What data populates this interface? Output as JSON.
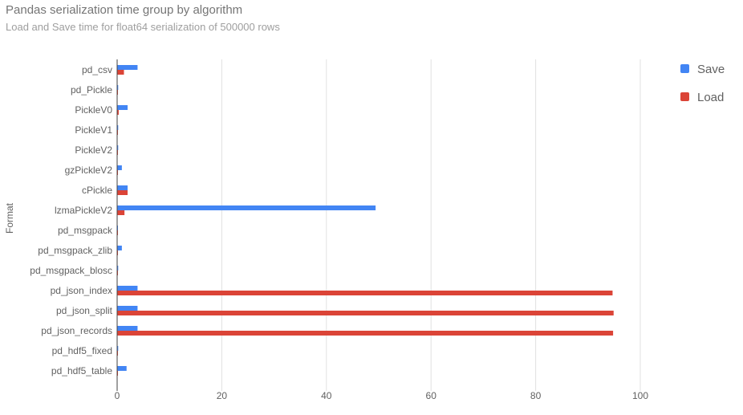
{
  "chart_data": {
    "type": "bar",
    "orientation": "horizontal",
    "title": "Pandas serialization time group by algorithm",
    "subtitle": "Load and Save time for float64 serialization of 500000 rows",
    "ylabel": "Format",
    "xlabel": "",
    "xlim": [
      0,
      105
    ],
    "xticks": [
      0,
      20,
      40,
      60,
      80,
      100
    ],
    "grid": true,
    "legend_position": "right",
    "categories": [
      "pd_csv",
      "pd_Pickle",
      "PickleV0",
      "PickleV1",
      "PickleV2",
      "gzPickleV2",
      "cPickle",
      "lzmaPickleV2",
      "pd_msgpack",
      "pd_msgpack_zlib",
      "pd_msgpack_blosc",
      "pd_json_index",
      "pd_json_split",
      "pd_json_records",
      "pd_hdf5_fixed",
      "pd_hdf5_table"
    ],
    "series": [
      {
        "name": "Save",
        "color": "#4285f4",
        "values": [
          3.9,
          0.2,
          2.0,
          0.2,
          0.2,
          0.9,
          2.0,
          49.4,
          0.1,
          0.9,
          0.2,
          3.9,
          3.9,
          3.9,
          0.2,
          1.8
        ]
      },
      {
        "name": "Load",
        "color": "#db4437",
        "values": [
          1.3,
          0.05,
          0.3,
          0.05,
          0.05,
          0.1,
          2.0,
          1.4,
          0.05,
          0.1,
          0.05,
          94.7,
          94.9,
          94.8,
          0.05,
          0.1
        ]
      }
    ]
  }
}
